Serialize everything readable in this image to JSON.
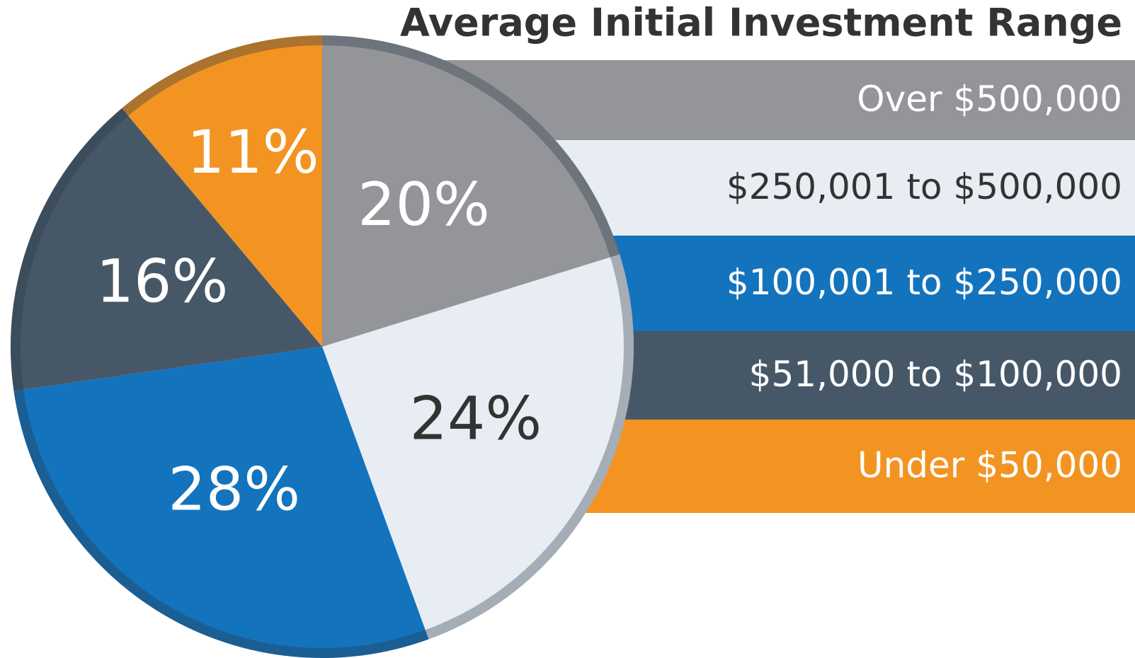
{
  "chart_data": {
    "type": "pie",
    "title": "Average Initial Investment Range",
    "categories": [
      "Over $500,000",
      "$250,001 to $500,000",
      "$100,001 to $250,000",
      "$51,000 to $100,000",
      "Under $50,000"
    ],
    "values": [
      20,
      24,
      28,
      16,
      11
    ],
    "value_labels": [
      "20%",
      "24%",
      "28%",
      "16%",
      "11%"
    ],
    "colors": [
      "#939598",
      "#e8edf3",
      "#1473bd",
      "#465868",
      "#f39422"
    ]
  }
}
